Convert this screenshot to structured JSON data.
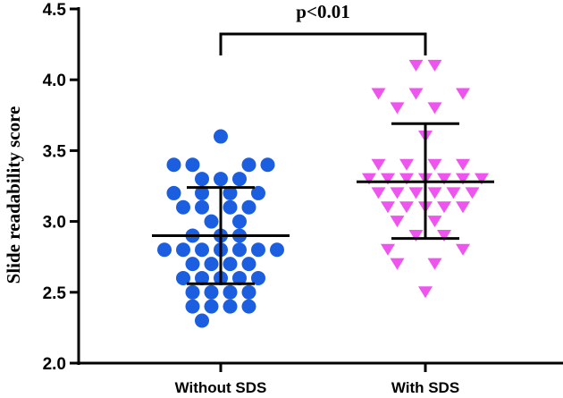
{
  "chart_data": {
    "type": "scatter",
    "title": "",
    "ylabel": "Slide readability score",
    "xlabel": "",
    "categories": [
      "Without SDS",
      "With SDS"
    ],
    "ylim": [
      2.0,
      4.5
    ],
    "yticks": [
      "2.0",
      "2.5",
      "3.0",
      "3.5",
      "4.0",
      "4.5"
    ],
    "legend": "none",
    "grid": false,
    "annotation": "p<0.01",
    "series": [
      {
        "category": "Without SDS",
        "marker": "circle",
        "color": "#1b5fe0",
        "mean": 2.9,
        "sd_low": 2.56,
        "sd_high": 3.24,
        "points": [
          {
            "offset": -2,
            "y": 2.3
          },
          {
            "offset": -1,
            "y": 2.4
          },
          {
            "offset": 1,
            "y": 2.4
          },
          {
            "offset": -3,
            "y": 2.4
          },
          {
            "offset": 3,
            "y": 2.4
          },
          {
            "offset": -3,
            "y": 2.5
          },
          {
            "offset": -1,
            "y": 2.5
          },
          {
            "offset": 1,
            "y": 2.5
          },
          {
            "offset": 3,
            "y": 2.5
          },
          {
            "offset": -4,
            "y": 2.6
          },
          {
            "offset": -2,
            "y": 2.6
          },
          {
            "offset": 0,
            "y": 2.6
          },
          {
            "offset": 2,
            "y": 2.6
          },
          {
            "offset": 4,
            "y": 2.6
          },
          {
            "offset": -3,
            "y": 2.7
          },
          {
            "offset": -1,
            "y": 2.7
          },
          {
            "offset": 1,
            "y": 2.7
          },
          {
            "offset": 3,
            "y": 2.7
          },
          {
            "offset": -6,
            "y": 2.8
          },
          {
            "offset": -4,
            "y": 2.8
          },
          {
            "offset": -2,
            "y": 2.8
          },
          {
            "offset": 0,
            "y": 2.8
          },
          {
            "offset": 2,
            "y": 2.8
          },
          {
            "offset": 4,
            "y": 2.8
          },
          {
            "offset": 6,
            "y": 2.8
          },
          {
            "offset": -3,
            "y": 2.9
          },
          {
            "offset": 0,
            "y": 2.9
          },
          {
            "offset": 2,
            "y": 2.9
          },
          {
            "offset": -1,
            "y": 3.0
          },
          {
            "offset": 2,
            "y": 3.0
          },
          {
            "offset": -4,
            "y": 3.1
          },
          {
            "offset": -2,
            "y": 3.1
          },
          {
            "offset": 1,
            "y": 3.1
          },
          {
            "offset": 3,
            "y": 3.1
          },
          {
            "offset": -5,
            "y": 3.2
          },
          {
            "offset": -2,
            "y": 3.2
          },
          {
            "offset": 1,
            "y": 3.2
          },
          {
            "offset": 4,
            "y": 3.2
          },
          {
            "offset": -2,
            "y": 3.3
          },
          {
            "offset": 0,
            "y": 3.3
          },
          {
            "offset": 2,
            "y": 3.3
          },
          {
            "offset": -5,
            "y": 3.4
          },
          {
            "offset": 5,
            "y": 3.4
          },
          {
            "offset": -3,
            "y": 3.4
          },
          {
            "offset": 3,
            "y": 3.4
          },
          {
            "offset": 0,
            "y": 3.6
          }
        ]
      },
      {
        "category": "With SDS",
        "marker": "triangle-down",
        "color": "#ee55ee",
        "mean": 3.28,
        "sd_low": 2.88,
        "sd_high": 3.69,
        "points": [
          {
            "offset": 0,
            "y": 2.5
          },
          {
            "offset": -3,
            "y": 2.7
          },
          {
            "offset": 1,
            "y": 2.7
          },
          {
            "offset": -4,
            "y": 2.8
          },
          {
            "offset": 4,
            "y": 2.8
          },
          {
            "offset": -1,
            "y": 2.9
          },
          {
            "offset": 2,
            "y": 2.9
          },
          {
            "offset": -3,
            "y": 3.0
          },
          {
            "offset": 1,
            "y": 3.0
          },
          {
            "offset": -4,
            "y": 3.1
          },
          {
            "offset": -2,
            "y": 3.1
          },
          {
            "offset": 0,
            "y": 3.1
          },
          {
            "offset": 2,
            "y": 3.1
          },
          {
            "offset": 4,
            "y": 3.1
          },
          {
            "offset": -5,
            "y": 3.2
          },
          {
            "offset": -3,
            "y": 3.2
          },
          {
            "offset": -1,
            "y": 3.2
          },
          {
            "offset": 1,
            "y": 3.2
          },
          {
            "offset": 3,
            "y": 3.2
          },
          {
            "offset": 5,
            "y": 3.2
          },
          {
            "offset": -6,
            "y": 3.3
          },
          {
            "offset": -4,
            "y": 3.3
          },
          {
            "offset": -2,
            "y": 3.3
          },
          {
            "offset": 0,
            "y": 3.3
          },
          {
            "offset": 2,
            "y": 3.3
          },
          {
            "offset": 4,
            "y": 3.3
          },
          {
            "offset": 6,
            "y": 3.3
          },
          {
            "offset": -5,
            "y": 3.4
          },
          {
            "offset": -2,
            "y": 3.4
          },
          {
            "offset": 1,
            "y": 3.4
          },
          {
            "offset": 4,
            "y": 3.4
          },
          {
            "offset": 0,
            "y": 3.6
          },
          {
            "offset": -3,
            "y": 3.8
          },
          {
            "offset": 1,
            "y": 3.8
          },
          {
            "offset": -5,
            "y": 3.9
          },
          {
            "offset": -1,
            "y": 3.9
          },
          {
            "offset": 4,
            "y": 3.9
          },
          {
            "offset": -1,
            "y": 4.1
          },
          {
            "offset": 1,
            "y": 4.1
          }
        ]
      }
    ]
  }
}
